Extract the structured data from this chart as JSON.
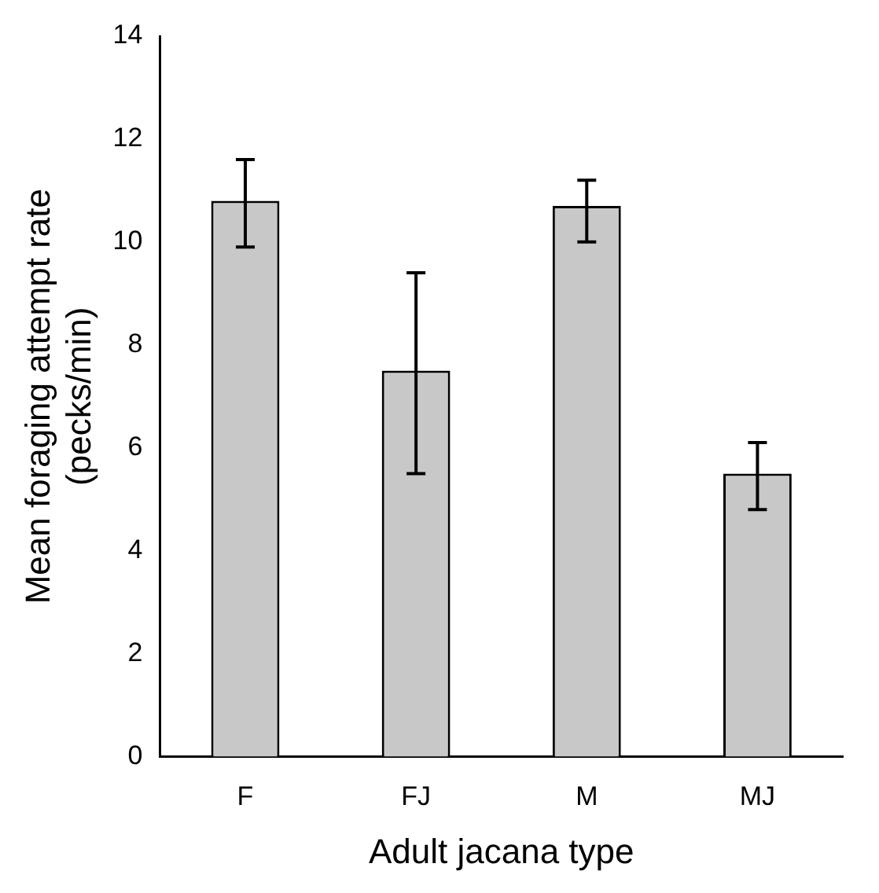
{
  "chart_data": {
    "type": "bar",
    "xlabel": "Adult jacana type",
    "ylabel": "Mean foraging attempt rate (pecks/min)",
    "categories": [
      "F",
      "FJ",
      "M",
      "MJ"
    ],
    "values": [
      10.8,
      7.5,
      10.7,
      5.5
    ],
    "color": "#c8c8c8",
    "errors": [
      [
        9.9,
        11.6
      ],
      [
        5.5,
        9.4
      ],
      [
        10.0,
        11.2
      ],
      [
        4.8,
        6.1
      ]
    ],
    "ylim": [
      0,
      14
    ],
    "yticks": [
      0,
      2,
      4,
      6,
      8,
      10,
      12,
      14
    ],
    "grid": false,
    "legend": false
  }
}
